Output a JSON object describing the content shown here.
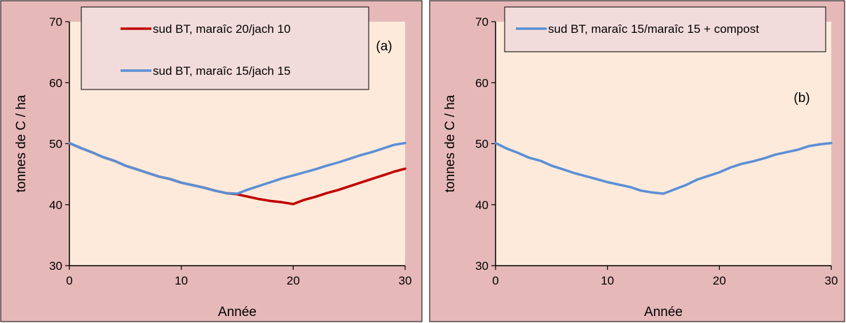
{
  "colors": {
    "frame_bg": "#e6b9b8",
    "plot_bg": "#fdeada",
    "legend_bg": "#f2dcdb",
    "red_series": "#c00000",
    "blue_series": "#5b8fd6"
  },
  "chart_data": [
    {
      "type": "line",
      "panel_tag": "(a)",
      "xlabel": "Année",
      "ylabel": "tonnes de C / ha",
      "xlim": [
        0,
        30
      ],
      "ylim": [
        30,
        70
      ],
      "xticks": [
        0,
        10,
        20,
        30
      ],
      "yticks": [
        30,
        40,
        50,
        60,
        70
      ],
      "grid": false,
      "legend_position": "top",
      "series": [
        {
          "name": "sud BT, maraîc 20/jach 10",
          "color": "#c00000",
          "x": [
            0,
            1,
            2,
            3,
            4,
            5,
            6,
            7,
            8,
            9,
            10,
            11,
            12,
            13,
            14,
            15,
            16,
            17,
            18,
            19,
            20,
            21,
            22,
            23,
            24,
            25,
            26,
            27,
            28,
            29,
            30
          ],
          "y": [
            50.1,
            49.3,
            48.6,
            47.8,
            47.2,
            46.4,
            45.8,
            45.2,
            44.6,
            44.2,
            43.6,
            43.2,
            42.8,
            42.3,
            41.9,
            41.7,
            41.3,
            40.9,
            40.6,
            40.4,
            40.1,
            40.8,
            41.3,
            41.9,
            42.4,
            43.0,
            43.6,
            44.2,
            44.8,
            45.4,
            45.9
          ]
        },
        {
          "name": "sud BT, maraîc 15/jach 15",
          "color": "#5b8fd6",
          "x": [
            0,
            1,
            2,
            3,
            4,
            5,
            6,
            7,
            8,
            9,
            10,
            11,
            12,
            13,
            14,
            15,
            16,
            17,
            18,
            19,
            20,
            21,
            22,
            23,
            24,
            25,
            26,
            27,
            28,
            29,
            30
          ],
          "y": [
            50.1,
            49.3,
            48.6,
            47.8,
            47.2,
            46.4,
            45.8,
            45.2,
            44.6,
            44.2,
            43.6,
            43.2,
            42.8,
            42.3,
            41.9,
            41.8,
            42.5,
            43.1,
            43.7,
            44.3,
            44.8,
            45.3,
            45.8,
            46.4,
            46.9,
            47.5,
            48.1,
            48.6,
            49.2,
            49.8,
            50.1
          ]
        }
      ]
    },
    {
      "type": "line",
      "panel_tag": "(b)",
      "xlabel": "Année",
      "ylabel": "tonnes de C / ha",
      "xlim": [
        0,
        30
      ],
      "ylim": [
        30,
        70
      ],
      "xticks": [
        0,
        10,
        20,
        30
      ],
      "yticks": [
        30,
        40,
        50,
        60,
        70
      ],
      "grid": false,
      "legend_position": "top",
      "series": [
        {
          "name": "sud BT, maraîc 15/maraîc 15 + compost",
          "color": "#5b8fd6",
          "x": [
            0,
            1,
            2,
            3,
            4,
            5,
            6,
            7,
            8,
            9,
            10,
            11,
            12,
            13,
            14,
            15,
            16,
            17,
            18,
            19,
            20,
            21,
            22,
            23,
            24,
            25,
            26,
            27,
            28,
            29,
            30
          ],
          "y": [
            50.1,
            49.2,
            48.5,
            47.7,
            47.2,
            46.4,
            45.8,
            45.2,
            44.7,
            44.2,
            43.7,
            43.3,
            42.9,
            42.3,
            42.0,
            41.8,
            42.5,
            43.2,
            44.1,
            44.7,
            45.3,
            46.1,
            46.7,
            47.1,
            47.6,
            48.2,
            48.6,
            49.0,
            49.6,
            49.9,
            50.1
          ]
        }
      ]
    }
  ]
}
